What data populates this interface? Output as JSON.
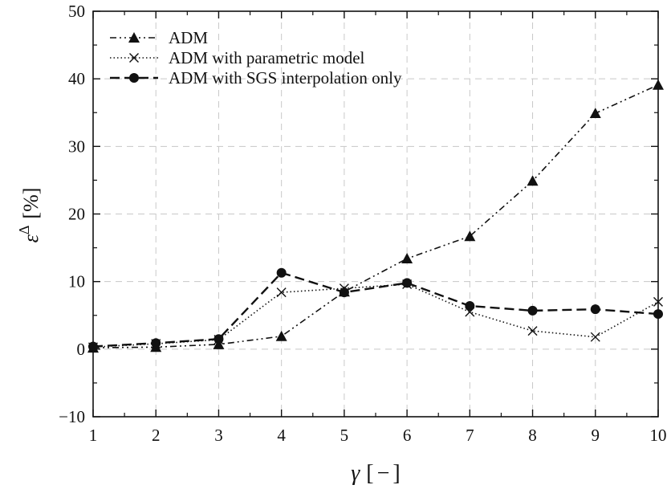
{
  "chart_data": {
    "type": "line",
    "title": "",
    "xlabel": "γ [−]",
    "ylabel": "ε^Δ [%]",
    "xlim": [
      1,
      10
    ],
    "ylim": [
      -10,
      50
    ],
    "x_ticks": [
      1,
      2,
      3,
      4,
      5,
      6,
      7,
      8,
      9,
      10
    ],
    "y_ticks": [
      -10,
      0,
      10,
      20,
      30,
      40,
      50
    ],
    "x": [
      1,
      2,
      3,
      4,
      5,
      6,
      7,
      8,
      9,
      10
    ],
    "grid": true,
    "legend_position": "top-left",
    "series": [
      {
        "name": "ADM",
        "marker": "triangle",
        "line_style": "dash-dot-dot",
        "values": [
          0.2,
          0.3,
          0.7,
          1.9,
          8.5,
          13.4,
          16.7,
          24.9,
          34.9,
          39.1
        ]
      },
      {
        "name": "ADM with parametric model",
        "marker": "cross",
        "line_style": "dotted",
        "values": [
          0.3,
          0.8,
          1.4,
          8.4,
          9.0,
          9.6,
          5.5,
          2.7,
          1.8,
          7.0
        ]
      },
      {
        "name": "ADM with SGS interpolation only",
        "marker": "circle",
        "line_style": "dashed",
        "values": [
          0.4,
          0.9,
          1.5,
          11.3,
          8.4,
          9.8,
          6.4,
          5.7,
          5.9,
          5.2
        ]
      }
    ]
  }
}
